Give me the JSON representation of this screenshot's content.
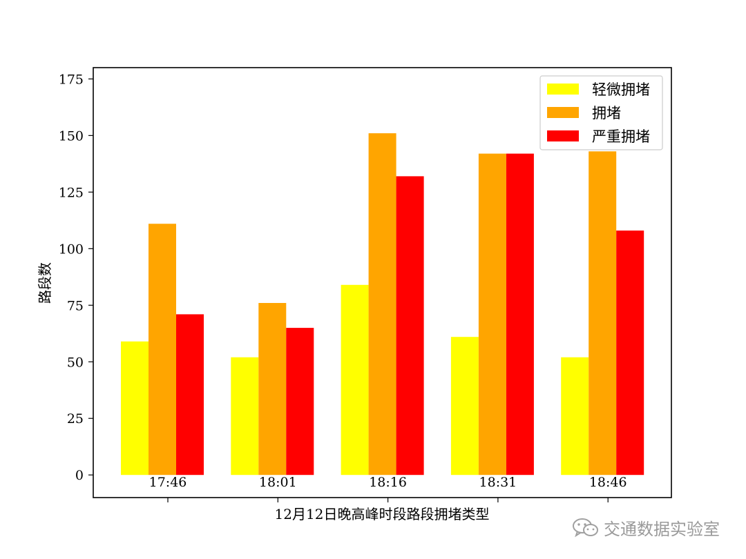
{
  "chart_data": {
    "type": "bar",
    "categories": [
      "17:46",
      "18:01",
      "18:16",
      "18:31",
      "18:46"
    ],
    "series": [
      {
        "name": "轻微拥堵",
        "color": "#ffff00",
        "values": [
          59,
          52,
          84,
          61,
          52
        ]
      },
      {
        "name": "拥堵",
        "color": "#ffa500",
        "values": [
          111,
          76,
          151,
          142,
          143
        ]
      },
      {
        "name": "严重拥堵",
        "color": "#ff0000",
        "values": [
          71,
          65,
          132,
          142,
          108
        ]
      }
    ],
    "title": "",
    "xlabel": "12月12日晚高峰时段路段拥堵类型",
    "ylabel": "路段数",
    "ylim": [
      -10,
      180
    ],
    "yticks": [
      0,
      25,
      50,
      75,
      100,
      125,
      150,
      175
    ],
    "legend_position": "top-right",
    "grid": false
  },
  "watermark": {
    "text": "交通数据实验室",
    "icon": "wechat-icon"
  }
}
